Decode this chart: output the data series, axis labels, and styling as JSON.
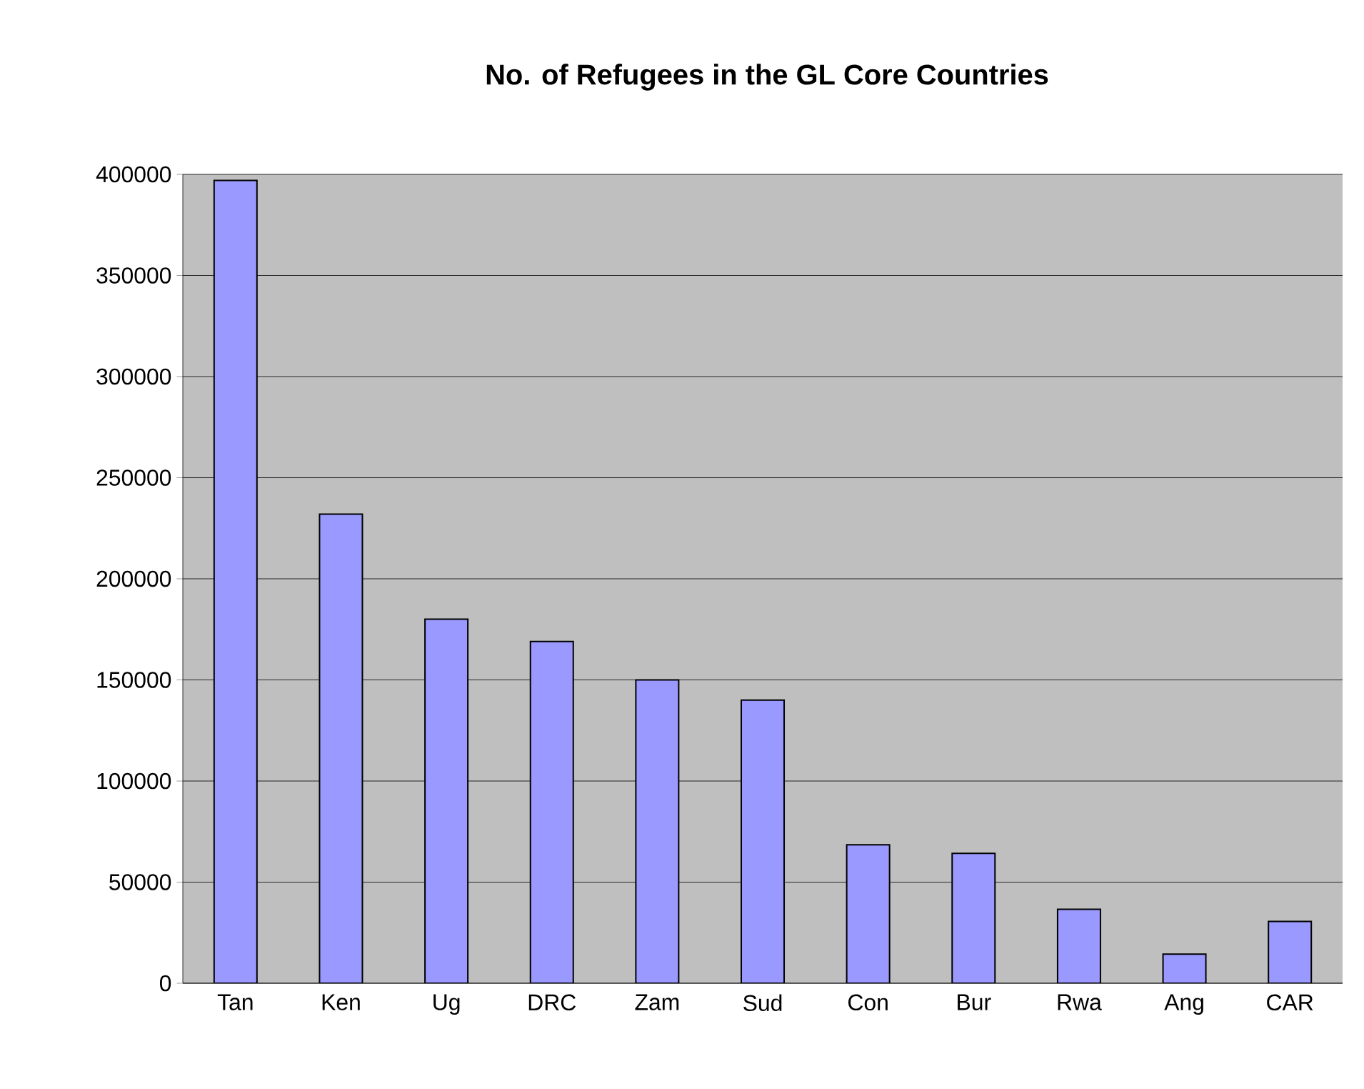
{
  "chart_data": {
    "type": "bar",
    "title": "**No. of Refugees in the GL Core Countries**",
    "categories": [
      "Tan",
      "Ken",
      "Ug",
      "DRC",
      "Zam",
      "Sud",
      "Con",
      "Bur",
      "Rwa",
      "Ang",
      "CAR"
    ],
    "values": [
      397000,
      232000,
      180000,
      169000,
      150000,
      140000,
      68500,
      64200,
      36600,
      14400,
      30600
    ],
    "color": "#9999ff",
    "ylim": [
      0,
      400000
    ],
    "yticks": [
      0,
      50000,
      100000,
      150000,
      200000,
      250000,
      300000,
      350000,
      400000
    ],
    "grid": "y"
  }
}
